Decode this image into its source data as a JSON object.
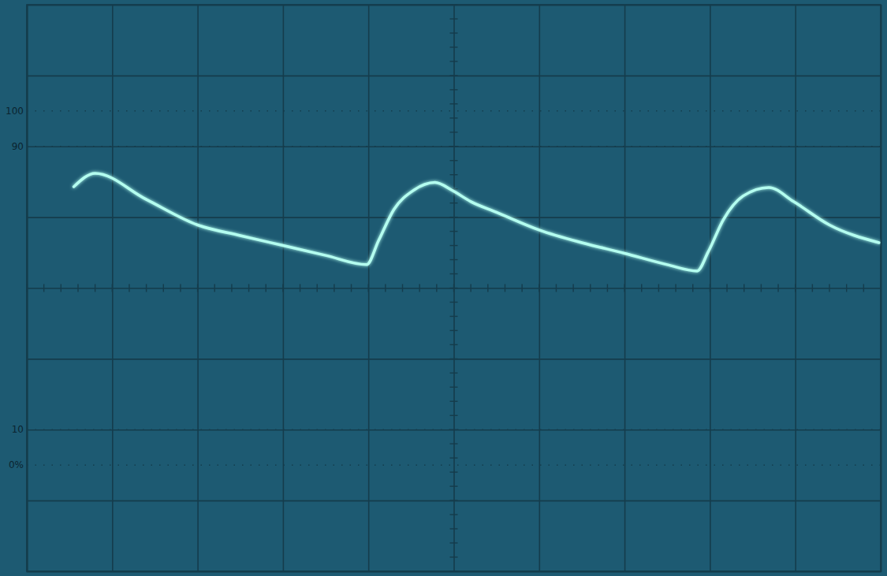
{
  "chart_data": {
    "type": "line",
    "xlim": [
      -5,
      5
    ],
    "ylim": [
      -4,
      4
    ],
    "xticks": [
      -5,
      -4,
      -3,
      -2,
      -1,
      0,
      1,
      2,
      3,
      4,
      5
    ],
    "yticks": [
      -4,
      -3,
      -2,
      -1,
      0,
      1,
      2,
      3,
      4
    ],
    "grid": true,
    "tick_labels": false,
    "annotations": [
      {
        "text": "100",
        "y": 2.5
      },
      {
        "text": "90",
        "y": 2.0
      },
      {
        "text": "10",
        "y": -2.0
      },
      {
        "text": "0%",
        "y": -2.5
      }
    ],
    "series": [
      {
        "color": "#b4fff0",
        "x": [
          -4.45,
          -4.2,
          -3.6,
          -3.0,
          -2.5,
          -2.0,
          -1.5,
          -1.02,
          -0.88,
          -0.7,
          -0.47,
          -0.22,
          -0.02,
          0.2,
          0.5,
          1.0,
          1.5,
          2.0,
          2.5,
          2.85,
          2.98,
          3.16,
          3.39,
          3.69,
          3.98,
          4.4,
          4.98
        ],
        "values": [
          1.43,
          1.62,
          1.25,
          0.89,
          0.74,
          0.6,
          0.46,
          0.33,
          0.67,
          1.11,
          1.38,
          1.49,
          1.38,
          1.22,
          1.07,
          0.82,
          0.64,
          0.49,
          0.33,
          0.24,
          0.51,
          0.97,
          1.3,
          1.42,
          1.22,
          0.89,
          0.64
        ]
      }
    ]
  }
}
